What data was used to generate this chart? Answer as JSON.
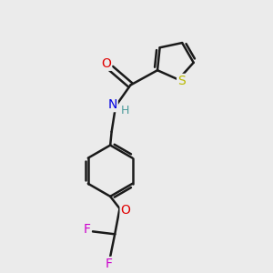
{
  "background_color": "#ebebeb",
  "bond_color": "#1a1a1a",
  "atom_colors": {
    "O": "#e00000",
    "N": "#0000e0",
    "S": "#b8b800",
    "F": "#cc00cc",
    "H_color": "#4a9a9a"
  },
  "figsize": [
    3.0,
    3.0
  ],
  "dpi": 100
}
